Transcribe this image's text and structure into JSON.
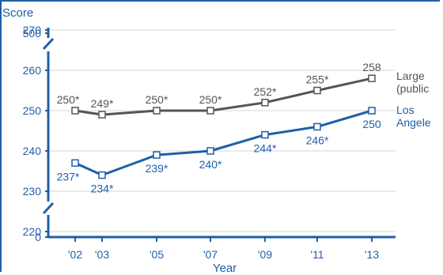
{
  "chart_data": {
    "type": "line",
    "ylabel": "Score",
    "xlabel": "Year",
    "x": [
      "'02",
      "'03",
      "'05",
      "'07",
      "'09",
      "'11",
      "'13"
    ],
    "y_axis": {
      "ticks": [
        "0",
        "220",
        "230",
        "240",
        "250",
        "260",
        "270",
        "500"
      ],
      "range": [
        215,
        272
      ],
      "broken": true,
      "grid": true
    },
    "series": [
      {
        "name": "Large (public",
        "color": "#555555",
        "values": [
          250,
          249,
          250,
          250,
          252,
          255,
          258
        ],
        "labels": [
          "250*",
          "249*",
          "250*",
          "250*",
          "252*",
          "255*",
          "258"
        ],
        "label_position": "above",
        "end_label_lines": [
          "Large",
          "(public"
        ]
      },
      {
        "name": "Los Angele",
        "color": "#1f5fa8",
        "values": [
          237,
          234,
          239,
          240,
          244,
          246,
          250
        ],
        "labels": [
          "237*",
          "234*",
          "239*",
          "240*",
          "244*",
          "246*",
          "250"
        ],
        "label_position": "below",
        "end_label_lines": [
          "Los",
          "Angele"
        ]
      }
    ]
  },
  "colors": {
    "axis": "#1f5fa8",
    "grid": "#d7d7d7"
  }
}
